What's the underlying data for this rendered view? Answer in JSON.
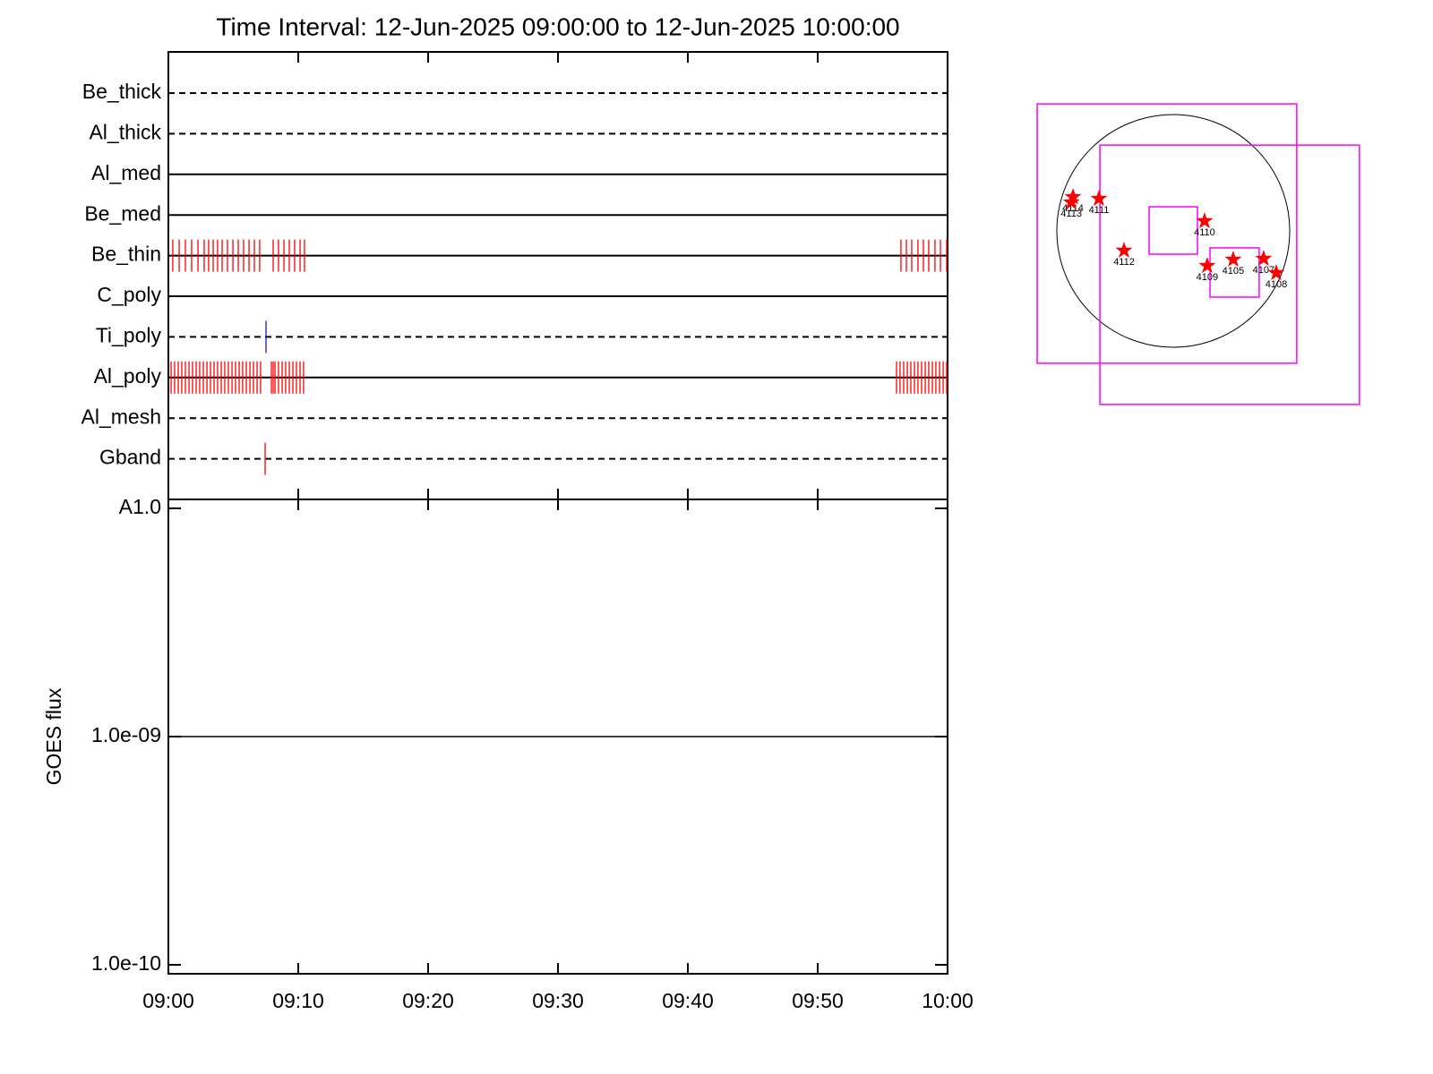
{
  "chart_data": [
    {
      "type": "timeline",
      "title": "Time Interval: 12-Jun-2025 09:00:00 to 12-Jun-2025 10:00:00",
      "xlim": [
        0,
        60
      ],
      "rows": [
        {
          "name": "Be_thick",
          "style": "dashed",
          "times": []
        },
        {
          "name": "Al_thick",
          "style": "dashed",
          "times": []
        },
        {
          "name": "Al_med",
          "style": "solid",
          "times": []
        },
        {
          "name": "Be_med",
          "style": "solid",
          "times": []
        },
        {
          "name": "Be_thin",
          "style": "solid",
          "color": "#ff0000",
          "times": [
            0.34,
            0.83,
            1.31,
            1.79,
            2.28,
            2.76,
            3.1,
            3.45,
            3.79,
            4.14,
            4.55,
            4.97,
            5.38,
            5.79,
            6.21,
            6.62,
            7.03,
            8.07,
            8.48,
            8.9,
            9.31,
            9.72,
            10.14,
            10.48,
            56.41,
            56.83,
            57.24,
            57.72,
            58.14,
            58.55,
            59.03,
            59.45,
            59.93
          ]
        },
        {
          "name": "C_poly",
          "style": "solid",
          "times": []
        },
        {
          "name": "Ti_poly",
          "style": "dashed",
          "color": "#1a1aa0",
          "times": [
            7.52
          ]
        },
        {
          "name": "Al_poly",
          "style": "solid",
          "color": "#ff0000",
          "times": [
            0.21,
            0.48,
            0.76,
            1.03,
            1.31,
            1.59,
            1.86,
            2.14,
            2.41,
            2.69,
            2.97,
            3.24,
            3.52,
            3.79,
            4.07,
            4.34,
            4.62,
            4.9,
            5.17,
            5.45,
            5.72,
            6,
            6.28,
            6.55,
            6.83,
            7.1,
            7.93,
            8.07,
            8.21,
            8.48,
            8.76,
            9.03,
            9.31,
            9.59,
            9.86,
            10.14,
            10.41,
            56.07,
            56.34,
            56.62,
            56.9,
            57.17,
            57.45,
            57.72,
            58,
            58.28,
            58.55,
            58.83,
            59.1,
            59.38,
            59.66,
            59.93
          ]
        },
        {
          "name": "Al_mesh",
          "style": "dashed",
          "times": []
        },
        {
          "name": "Gband",
          "style": "dashed",
          "color": "#ff0000",
          "times": [
            7.45
          ]
        }
      ]
    },
    {
      "type": "line",
      "y_label": "GOES flux",
      "log_y": true,
      "color": "#000000",
      "x": [
        0,
        60
      ],
      "values": [
        1e-09,
        1e-09
      ],
      "xlim": [
        0,
        60
      ],
      "xticks": [
        {
          "value": 0,
          "label": "09:00"
        },
        {
          "value": 10,
          "label": "09:10"
        },
        {
          "value": 20,
          "label": "09:20"
        },
        {
          "value": 30,
          "label": "09:30"
        },
        {
          "value": 40,
          "label": "09:40"
        },
        {
          "value": 50,
          "label": "09:50"
        },
        {
          "value": 60,
          "label": "10:00"
        }
      ],
      "ylim": [
        1e-10,
        1e-08
      ],
      "yticks": [
        {
          "value": 1e-08,
          "label": "A1.0"
        },
        {
          "value": 1e-09,
          "label": "1.0e-09"
        },
        {
          "value": 1e-10,
          "label": "1.0e-10"
        }
      ]
    },
    {
      "type": "map",
      "solar_radius": 960,
      "box_color": "#ff00ff",
      "star_color": "#ff0000",
      "boxes": [
        {
          "x0": -1122,
          "y0": -1092,
          "x1": 1018,
          "y1": 1048
        },
        {
          "x0": -605,
          "y0": -1432,
          "x1": 1535,
          "y1": 708
        },
        {
          "x0": -199,
          "y0": -192,
          "x1": 199,
          "y1": 199
        },
        {
          "x0": 303,
          "y0": -546,
          "x1": 708,
          "y1": -140
        }
      ],
      "regions": [
        {
          "label": "4114",
          "x": -827,
          "y": 280
        },
        {
          "label": "4113",
          "x": -841,
          "y": 236
        },
        {
          "label": "4111",
          "x": -613,
          "y": 266
        },
        {
          "label": "4110",
          "x": 258,
          "y": 81
        },
        {
          "label": "4112",
          "x": -406,
          "y": -162
        },
        {
          "label": "4109",
          "x": 280,
          "y": -288
        },
        {
          "label": "4105",
          "x": 494,
          "y": -236
        },
        {
          "label": "4107",
          "x": 745,
          "y": -229
        },
        {
          "label": "4108",
          "x": 849,
          "y": -347
        }
      ]
    }
  ]
}
